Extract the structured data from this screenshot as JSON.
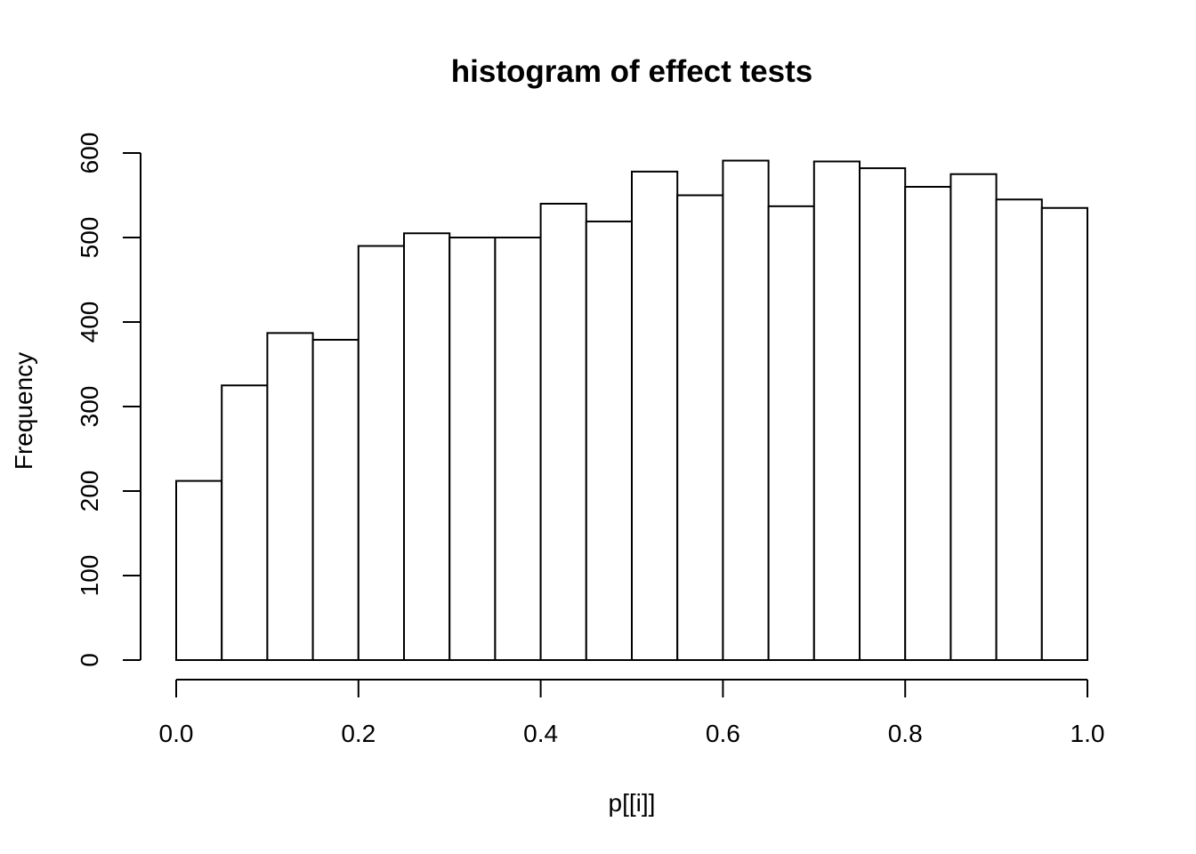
{
  "chart_data": {
    "type": "bar",
    "title": "histogram of effect tests",
    "xlabel": "p[[i]]",
    "ylabel": "Frequency",
    "bin_edges": [
      0.0,
      0.05,
      0.1,
      0.15,
      0.2,
      0.25,
      0.3,
      0.35,
      0.4,
      0.45,
      0.5,
      0.55,
      0.6,
      0.65,
      0.7,
      0.75,
      0.8,
      0.85,
      0.9,
      0.95,
      1.0
    ],
    "values": [
      212,
      325,
      387,
      379,
      490,
      505,
      500,
      500,
      540,
      519,
      578,
      550,
      591,
      537,
      590,
      582,
      560,
      575,
      545,
      535
    ],
    "xlim": [
      0,
      1
    ],
    "ylim": [
      0,
      600
    ],
    "x_ticks": [
      "0.0",
      "0.2",
      "0.4",
      "0.6",
      "0.8",
      "1.0"
    ],
    "y_ticks": [
      "0",
      "100",
      "200",
      "300",
      "400",
      "500",
      "600"
    ],
    "grid": false,
    "bar_fill": "#ffffff",
    "bar_stroke": "#000000"
  }
}
